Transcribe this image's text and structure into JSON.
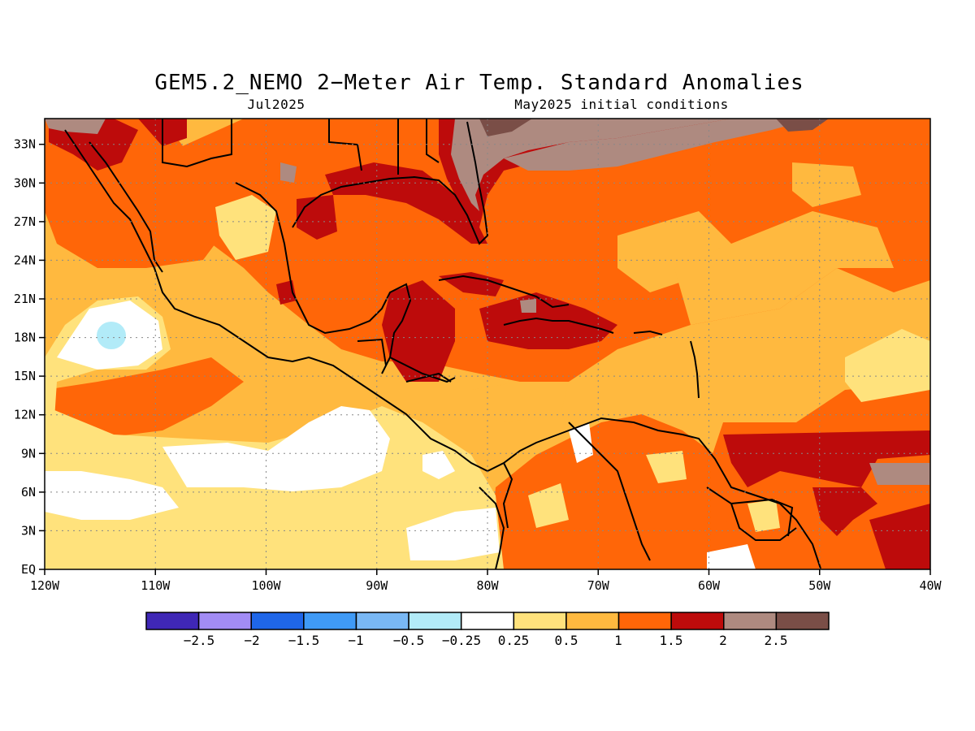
{
  "title": "GEM5.2_NEMO 2−Meter Air Temp. Standard Anomalies",
  "subtitle_left": "Jul2025",
  "subtitle_right": "May2025 initial conditions",
  "map": {
    "lon_range": [
      -120,
      -40
    ],
    "lat_range": [
      0,
      35
    ],
    "grid": true,
    "x_ticks": [
      "120W",
      "110W",
      "100W",
      "90W",
      "80W",
      "70W",
      "60W",
      "50W",
      "40W"
    ],
    "y_ticks": [
      "EQ",
      "3N",
      "6N",
      "9N",
      "12N",
      "15N",
      "18N",
      "21N",
      "24N",
      "27N",
      "30N",
      "33N"
    ]
  },
  "colorbar": {
    "labels": [
      "−2.5",
      "−2",
      "−1.5",
      "−1",
      "−0.5",
      "−0.25",
      "0.25",
      "0.5",
      "1",
      "1.5",
      "2",
      "2.5"
    ],
    "colors": [
      "#3f27b6",
      "#a28cf5",
      "#1f66e8",
      "#3f9af6",
      "#79b8f5",
      "#b2ebf8",
      "#ffffff",
      "#ffe27c",
      "#ffb93f",
      "#ff6608",
      "#bd0b0b",
      "#ae8a80",
      "#7a4e47"
    ]
  }
}
